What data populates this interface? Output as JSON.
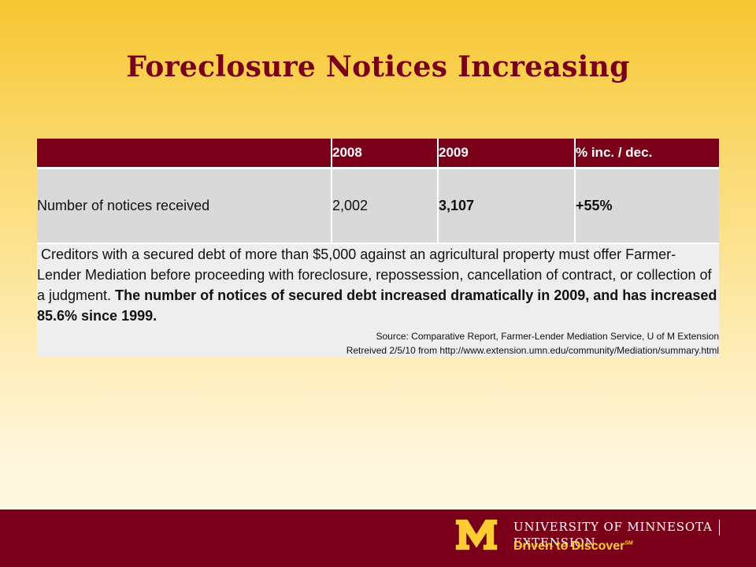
{
  "slide": {
    "title": "Foreclosure Notices Increasing"
  },
  "table": {
    "headers": [
      "",
      "2008",
      "2009",
      "% inc. / dec."
    ],
    "row": {
      "label": "Number of notices received",
      "v2008": "2,002",
      "v2009": "3,107",
      "change": "+55%"
    }
  },
  "note": {
    "text_plain": "Creditors with a secured debt of more than $5,000 against an agricultural property must offer Farmer-Lender Mediation before proceeding with foreclosure, repossession, cancellation of contract, or collection of a judgment.",
    "text_bold": "The number of notices of secured debt increased dramatically in 2009, and has increased 85.6% since 1999.",
    "source_line1": "Source: Comparative Report, Farmer-Lender Mediation Service, U of M Extension",
    "source_line2": "Retreived 2/5/10 from http://www.extension.umn.edu/community/Mediation/summary.html"
  },
  "footer": {
    "university": "UNIVERSITY OF MINNESOTA",
    "unit": "EXTENSION",
    "tagline": "Driven to Discover",
    "tagline_mark": "SM"
  },
  "colors": {
    "maroon": "#7a0019",
    "gold": "#ffcc33",
    "row_gray": "#d9d9d9",
    "note_gray": "#eeeeee"
  }
}
